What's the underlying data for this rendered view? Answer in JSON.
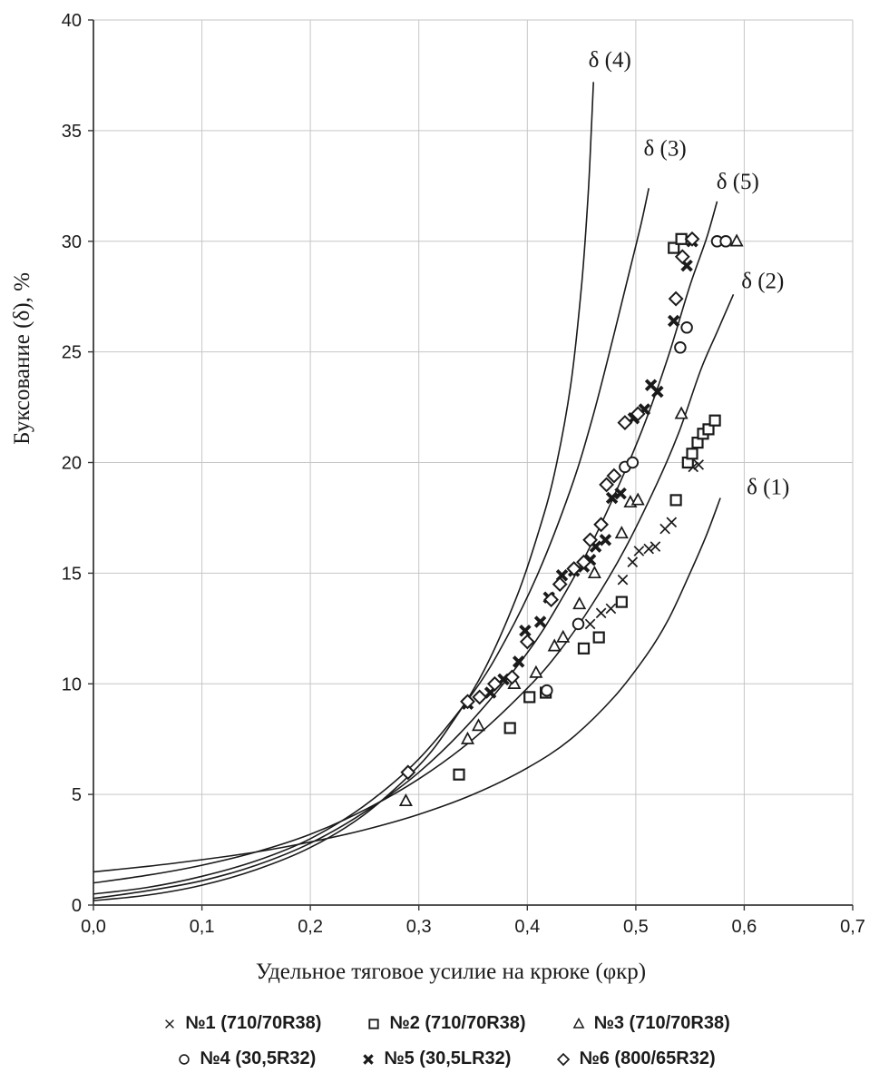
{
  "chart_data": {
    "type": "scatter",
    "title": "",
    "xlabel": "Удельное тяговое усилие на крюке (φкр)",
    "ylabel": "Буксование (δ), %",
    "xlim": [
      0,
      0.7
    ],
    "ylim": [
      0,
      40
    ],
    "x_tick_values": [
      0,
      0.1,
      0.2,
      0.3,
      0.4,
      0.5,
      0.6,
      0.7
    ],
    "x_tick_labels": [
      "0,0",
      "0,1",
      "0,2",
      "0,3",
      "0,4",
      "0,5",
      "0,6",
      "0,7"
    ],
    "y_tick_values": [
      0,
      5,
      10,
      15,
      20,
      25,
      30,
      35,
      40
    ],
    "y_tick_labels": [
      "0",
      "5",
      "10",
      "15",
      "20",
      "25",
      "30",
      "35",
      "40"
    ],
    "grid": true,
    "legend_position": "bottom",
    "colors": {
      "grid": "#c6c6c6",
      "axis": "#3a3a3a",
      "ink": "#1a1a1a",
      "background": "#ffffff"
    },
    "curves": [
      {
        "id": "delta-1",
        "label": "δ (1)",
        "label_pos": [
          0.622,
          18.9
        ],
        "points": [
          [
            0,
            1.5
          ],
          [
            0.05,
            1.75
          ],
          [
            0.1,
            2.05
          ],
          [
            0.15,
            2.4
          ],
          [
            0.2,
            2.85
          ],
          [
            0.25,
            3.4
          ],
          [
            0.3,
            4.1
          ],
          [
            0.35,
            5.0
          ],
          [
            0.4,
            6.2
          ],
          [
            0.44,
            7.5
          ],
          [
            0.48,
            9.4
          ],
          [
            0.51,
            11.3
          ],
          [
            0.53,
            12.9
          ],
          [
            0.55,
            15.0
          ],
          [
            0.565,
            16.7
          ],
          [
            0.578,
            18.4
          ]
        ]
      },
      {
        "id": "delta-2",
        "label": "δ (2)",
        "label_pos": [
          0.617,
          28.2
        ],
        "points": [
          [
            0,
            1.0
          ],
          [
            0.05,
            1.35
          ],
          [
            0.1,
            1.8
          ],
          [
            0.15,
            2.4
          ],
          [
            0.2,
            3.2
          ],
          [
            0.25,
            4.3
          ],
          [
            0.3,
            5.7
          ],
          [
            0.35,
            7.5
          ],
          [
            0.4,
            9.8
          ],
          [
            0.43,
            11.5
          ],
          [
            0.46,
            13.6
          ],
          [
            0.49,
            16.1
          ],
          [
            0.52,
            19.1
          ],
          [
            0.54,
            21.4
          ],
          [
            0.56,
            24.2
          ],
          [
            0.575,
            25.9
          ],
          [
            0.59,
            27.6
          ]
        ]
      },
      {
        "id": "delta-3",
        "label": "δ (3)",
        "label_pos": [
          0.527,
          34.2
        ],
        "points": [
          [
            0,
            0.5
          ],
          [
            0.05,
            0.8
          ],
          [
            0.1,
            1.3
          ],
          [
            0.15,
            2.0
          ],
          [
            0.2,
            3.0
          ],
          [
            0.25,
            4.5
          ],
          [
            0.3,
            6.6
          ],
          [
            0.35,
            9.6
          ],
          [
            0.38,
            12.0
          ],
          [
            0.41,
            15.0
          ],
          [
            0.44,
            18.8
          ],
          [
            0.46,
            22.0
          ],
          [
            0.48,
            25.8
          ],
          [
            0.495,
            28.8
          ],
          [
            0.505,
            30.8
          ],
          [
            0.512,
            32.4
          ]
        ]
      },
      {
        "id": "delta-4",
        "label": "δ (4)",
        "label_pos": [
          0.476,
          38.2
        ],
        "points": [
          [
            0,
            0.2
          ],
          [
            0.05,
            0.45
          ],
          [
            0.1,
            0.9
          ],
          [
            0.15,
            1.6
          ],
          [
            0.2,
            2.6
          ],
          [
            0.25,
            4.1
          ],
          [
            0.3,
            6.3
          ],
          [
            0.33,
            8.2
          ],
          [
            0.36,
            10.6
          ],
          [
            0.39,
            13.9
          ],
          [
            0.41,
            16.8
          ],
          [
            0.425,
            19.5
          ],
          [
            0.44,
            23.5
          ],
          [
            0.45,
            28.0
          ],
          [
            0.456,
            32.0
          ],
          [
            0.459,
            35.0
          ],
          [
            0.461,
            37.2
          ]
        ]
      },
      {
        "id": "delta-5",
        "label": "δ (5)",
        "label_pos": [
          0.594,
          32.7
        ],
        "points": [
          [
            0,
            0.3
          ],
          [
            0.05,
            0.65
          ],
          [
            0.1,
            1.1
          ],
          [
            0.15,
            1.8
          ],
          [
            0.2,
            2.8
          ],
          [
            0.25,
            4.2
          ],
          [
            0.3,
            6.0
          ],
          [
            0.35,
            8.4
          ],
          [
            0.4,
            11.4
          ],
          [
            0.43,
            13.7
          ],
          [
            0.46,
            16.4
          ],
          [
            0.49,
            19.6
          ],
          [
            0.51,
            22.0
          ],
          [
            0.53,
            24.8
          ],
          [
            0.55,
            28.0
          ],
          [
            0.565,
            30.1
          ],
          [
            0.575,
            31.8
          ]
        ]
      }
    ],
    "series": [
      {
        "id": "no1",
        "label": "№1 (710/70R38)",
        "marker": "x-thin",
        "points": [
          [
            0.458,
            12.7
          ],
          [
            0.468,
            13.2
          ],
          [
            0.477,
            13.4
          ],
          [
            0.488,
            14.7
          ],
          [
            0.497,
            15.5
          ],
          [
            0.503,
            16.0
          ],
          [
            0.512,
            16.1
          ],
          [
            0.518,
            16.2
          ],
          [
            0.527,
            17.0
          ],
          [
            0.533,
            17.3
          ],
          [
            0.553,
            19.8
          ],
          [
            0.558,
            19.9
          ]
        ]
      },
      {
        "id": "no2",
        "label": "№2 (710/70R38)",
        "marker": "square",
        "points": [
          [
            0.337,
            5.9
          ],
          [
            0.384,
            8.0
          ],
          [
            0.402,
            9.4
          ],
          [
            0.417,
            9.6
          ],
          [
            0.452,
            11.6
          ],
          [
            0.466,
            12.1
          ],
          [
            0.487,
            13.7
          ],
          [
            0.537,
            18.3
          ],
          [
            0.548,
            20.0
          ],
          [
            0.552,
            20.4
          ],
          [
            0.557,
            20.9
          ],
          [
            0.562,
            21.3
          ],
          [
            0.567,
            21.5
          ],
          [
            0.573,
            21.9
          ],
          [
            0.535,
            29.7
          ],
          [
            0.542,
            30.1
          ]
        ]
      },
      {
        "id": "no3",
        "label": "№3 (710/70R38)",
        "marker": "triangle",
        "points": [
          [
            0.288,
            4.7
          ],
          [
            0.345,
            7.5
          ],
          [
            0.355,
            8.1
          ],
          [
            0.388,
            10.0
          ],
          [
            0.408,
            10.5
          ],
          [
            0.425,
            11.7
          ],
          [
            0.433,
            12.1
          ],
          [
            0.448,
            13.6
          ],
          [
            0.462,
            15.0
          ],
          [
            0.487,
            16.8
          ],
          [
            0.495,
            18.2
          ],
          [
            0.502,
            18.3
          ],
          [
            0.542,
            22.2
          ],
          [
            0.593,
            30.0
          ]
        ]
      },
      {
        "id": "no4",
        "label": "№4 (30,5R32)",
        "marker": "circle",
        "points": [
          [
            0.418,
            9.7
          ],
          [
            0.447,
            12.7
          ],
          [
            0.49,
            19.8
          ],
          [
            0.497,
            20.0
          ],
          [
            0.541,
            25.2
          ],
          [
            0.547,
            26.1
          ],
          [
            0.575,
            30.0
          ],
          [
            0.583,
            30.0
          ]
        ]
      },
      {
        "id": "no5",
        "label": "№5 (30,5LR32)",
        "marker": "x-bold",
        "points": [
          [
            0.345,
            9.1
          ],
          [
            0.366,
            9.6
          ],
          [
            0.378,
            10.2
          ],
          [
            0.392,
            11.0
          ],
          [
            0.398,
            12.4
          ],
          [
            0.412,
            12.8
          ],
          [
            0.42,
            13.9
          ],
          [
            0.432,
            14.9
          ],
          [
            0.443,
            15.1
          ],
          [
            0.452,
            15.3
          ],
          [
            0.458,
            15.6
          ],
          [
            0.463,
            16.2
          ],
          [
            0.472,
            16.5
          ],
          [
            0.478,
            18.4
          ],
          [
            0.486,
            18.6
          ],
          [
            0.498,
            22.0
          ],
          [
            0.508,
            22.4
          ],
          [
            0.514,
            23.5
          ],
          [
            0.52,
            23.2
          ],
          [
            0.535,
            26.4
          ],
          [
            0.547,
            28.9
          ],
          [
            0.552,
            30.0
          ]
        ]
      },
      {
        "id": "no6",
        "label": "№6 (800/65R32)",
        "marker": "diamond",
        "points": [
          [
            0.29,
            6.0
          ],
          [
            0.345,
            9.2
          ],
          [
            0.356,
            9.4
          ],
          [
            0.37,
            10.0
          ],
          [
            0.386,
            10.3
          ],
          [
            0.4,
            11.9
          ],
          [
            0.422,
            13.8
          ],
          [
            0.43,
            14.5
          ],
          [
            0.443,
            15.2
          ],
          [
            0.452,
            15.5
          ],
          [
            0.458,
            16.5
          ],
          [
            0.468,
            17.2
          ],
          [
            0.473,
            19.0
          ],
          [
            0.48,
            19.4
          ],
          [
            0.49,
            21.8
          ],
          [
            0.502,
            22.2
          ],
          [
            0.537,
            27.4
          ],
          [
            0.543,
            29.3
          ],
          [
            0.552,
            30.1
          ]
        ]
      }
    ],
    "legend_rows": [
      [
        0,
        1,
        2
      ],
      [
        3,
        4,
        5
      ]
    ]
  }
}
